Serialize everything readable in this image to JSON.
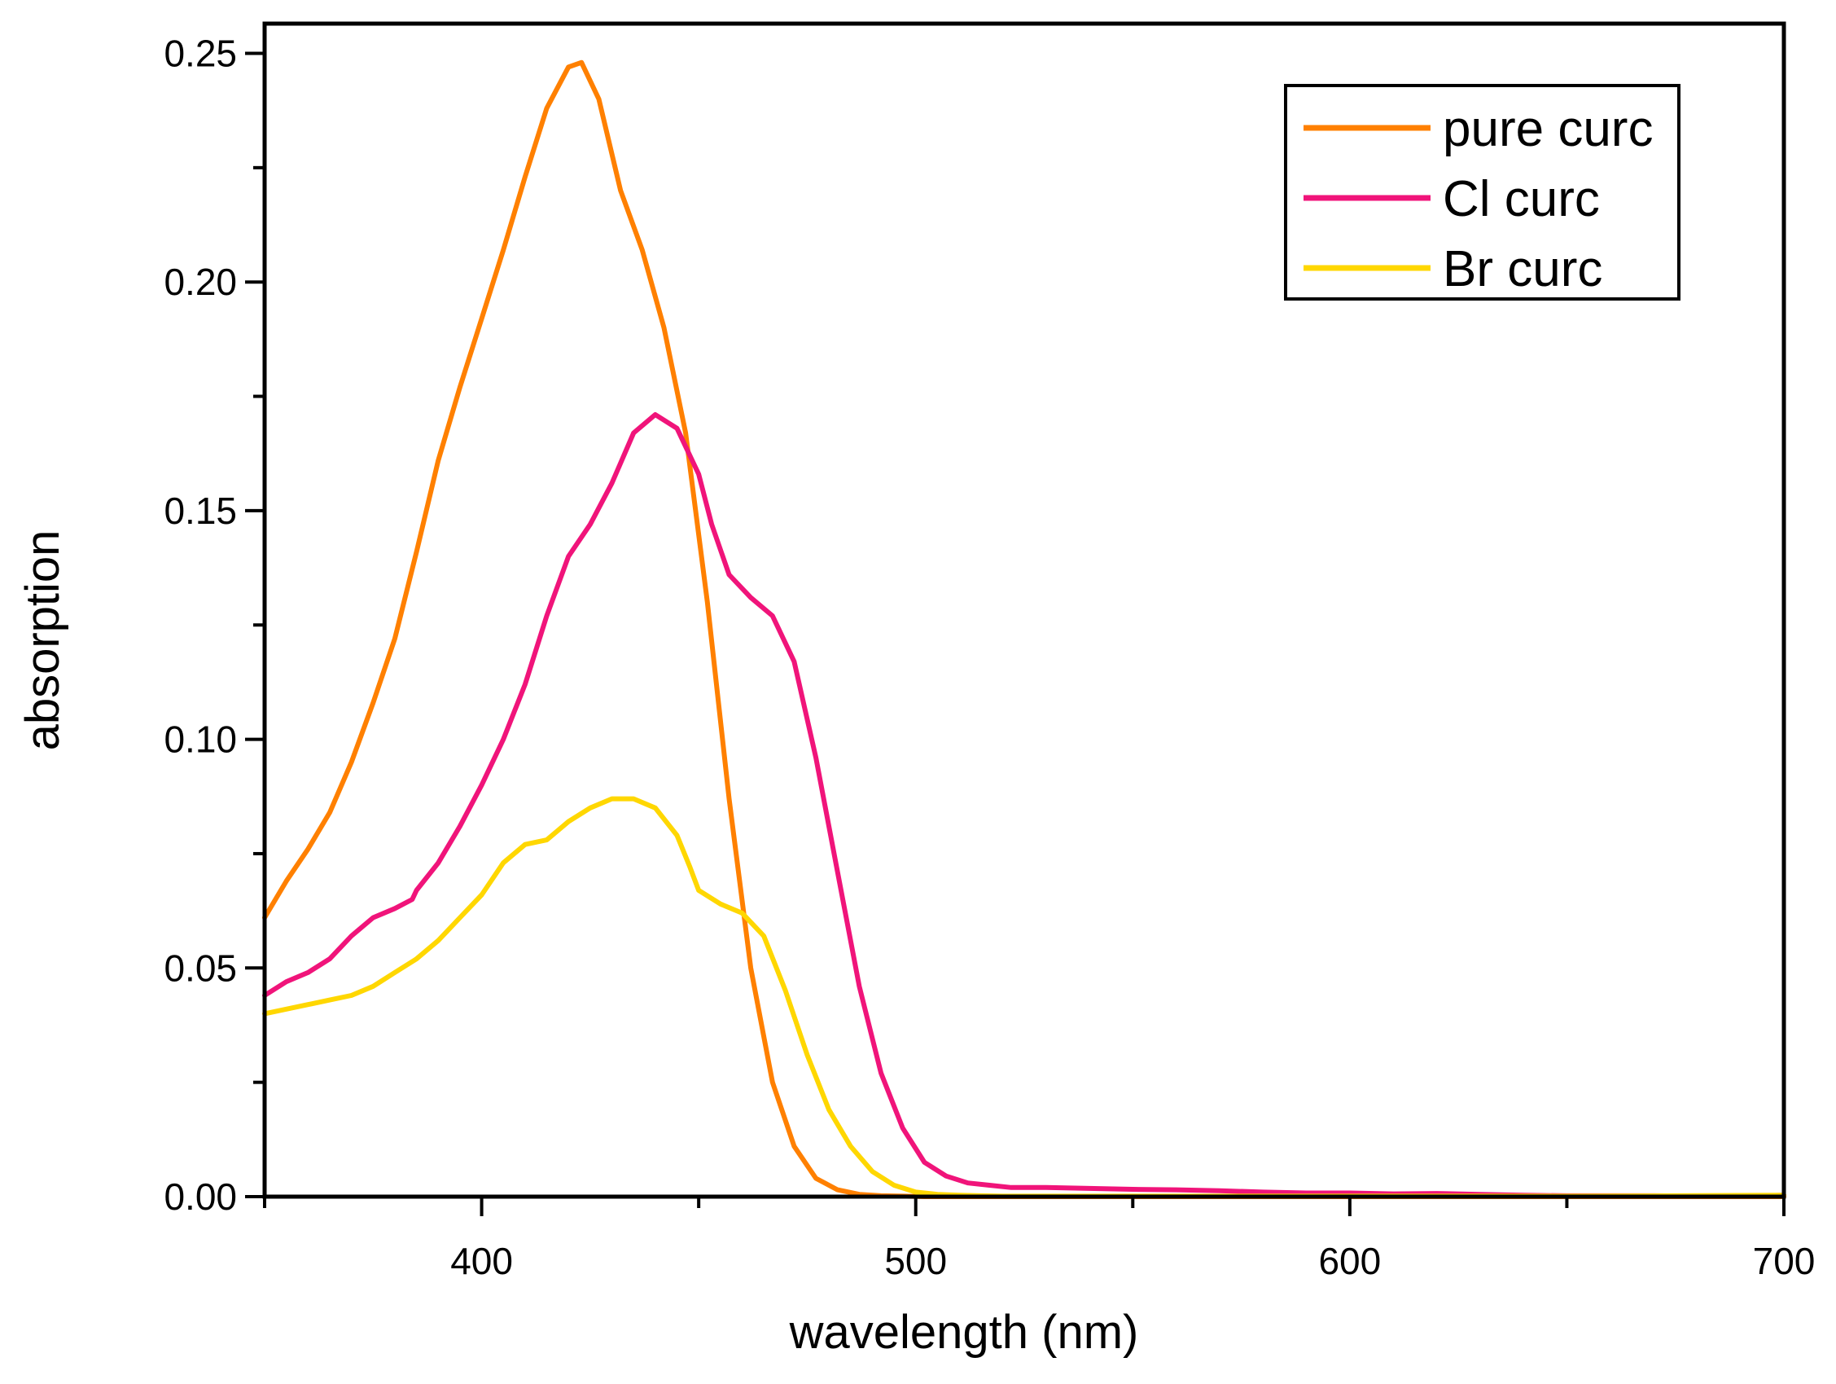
{
  "chart_data": {
    "type": "line",
    "title": "",
    "xlabel": "wavelength (nm)",
    "ylabel": "absorption",
    "xlim": [
      350,
      700
    ],
    "ylim": [
      0.0,
      0.2565
    ],
    "x_ticks": [
      400,
      500,
      600,
      700
    ],
    "x_tick_labels": [
      "400",
      "500",
      "600",
      "700"
    ],
    "x_minor_ticks": [
      350,
      450,
      550,
      650
    ],
    "y_ticks": [
      0.0,
      0.05,
      0.1,
      0.15,
      0.2,
      0.25
    ],
    "y_tick_labels": [
      "0.00",
      "0.05",
      "0.10",
      "0.15",
      "0.20",
      "0.25"
    ],
    "y_minor_ticks": [
      0.025,
      0.075,
      0.125,
      0.175,
      0.225
    ],
    "grid": false,
    "legend_position": "top-right",
    "series": [
      {
        "name": "pure curc",
        "color": "#FF8000",
        "x": [
          350,
          355,
          360,
          365,
          370,
          375,
          380,
          385,
          390,
          395,
          400,
          405,
          410,
          415,
          420,
          423,
          427,
          432,
          437,
          442,
          447,
          452,
          457,
          462,
          467,
          472,
          477,
          482,
          487,
          492,
          497,
          502,
          510,
          520,
          550,
          600,
          650,
          700
        ],
        "y": [
          0.061,
          0.069,
          0.076,
          0.084,
          0.095,
          0.108,
          0.122,
          0.141,
          0.161,
          0.177,
          0.192,
          0.207,
          0.223,
          0.238,
          0.247,
          0.248,
          0.24,
          0.22,
          0.207,
          0.19,
          0.167,
          0.13,
          0.087,
          0.05,
          0.025,
          0.011,
          0.004,
          0.0015,
          0.0005,
          0.0002,
          0.0001,
          0.0,
          0.0,
          0.0,
          0.0,
          0.0,
          0.0,
          0.0
        ]
      },
      {
        "name": "Cl curc",
        "color": "#F0147A",
        "x": [
          350,
          355,
          360,
          365,
          370,
          375,
          380,
          384,
          385,
          390,
          395,
          400,
          405,
          410,
          415,
          420,
          425,
          430,
          435,
          440,
          445,
          450,
          453,
          457,
          462,
          467,
          472,
          477,
          482,
          487,
          492,
          497,
          502,
          507,
          512,
          517,
          522,
          530,
          540,
          550,
          560,
          570,
          580,
          590,
          600,
          610,
          620,
          630,
          640,
          650,
          660,
          670,
          680,
          690,
          700
        ],
        "y": [
          0.044,
          0.047,
          0.049,
          0.052,
          0.057,
          0.061,
          0.063,
          0.065,
          0.067,
          0.073,
          0.081,
          0.09,
          0.1,
          0.112,
          0.127,
          0.14,
          0.147,
          0.156,
          0.167,
          0.171,
          0.168,
          0.158,
          0.147,
          0.136,
          0.131,
          0.127,
          0.117,
          0.096,
          0.071,
          0.046,
          0.027,
          0.015,
          0.0075,
          0.0045,
          0.003,
          0.0025,
          0.002,
          0.002,
          0.0018,
          0.0016,
          0.0015,
          0.0013,
          0.001,
          0.0008,
          0.0008,
          0.0006,
          0.0007,
          0.0005,
          0.0003,
          0.0002,
          0.0002,
          0.0002,
          0.0001,
          0.0001,
          0.0003
        ]
      },
      {
        "name": "Br curc",
        "color": "#FFD700",
        "x": [
          350,
          355,
          360,
          365,
          370,
          375,
          380,
          385,
          390,
          395,
          400,
          405,
          410,
          415,
          420,
          425,
          430,
          435,
          440,
          445,
          448,
          450,
          455,
          460,
          465,
          470,
          475,
          480,
          485,
          490,
          495,
          500,
          505,
          510,
          515,
          520,
          530,
          550,
          600,
          650,
          700
        ],
        "y": [
          0.04,
          0.041,
          0.042,
          0.043,
          0.044,
          0.046,
          0.049,
          0.052,
          0.056,
          0.061,
          0.066,
          0.073,
          0.077,
          0.078,
          0.082,
          0.085,
          0.087,
          0.087,
          0.085,
          0.079,
          0.072,
          0.067,
          0.064,
          0.062,
          0.057,
          0.045,
          0.031,
          0.019,
          0.011,
          0.0055,
          0.0025,
          0.001,
          0.0005,
          0.0003,
          0.0002,
          0.0001,
          0.0001,
          0.0001,
          0.0001,
          0.0001,
          0.0003
        ]
      }
    ]
  }
}
